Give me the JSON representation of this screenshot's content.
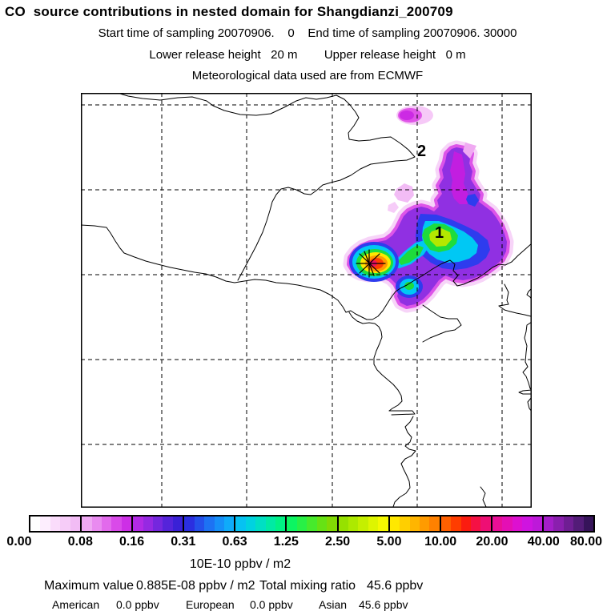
{
  "header": {
    "title": "CO  source contributions in nested domain for Shangdianzi_200709",
    "line2": "Start time of sampling 20070906.    0    End time of sampling 20070906. 30000",
    "line3": "Lower release height   20 m        Upper release height   0 m",
    "line4": "Meteorological data used are from ECMWF"
  },
  "map": {
    "label_1": "1",
    "label_2": "2",
    "marker": "star-at-receptor"
  },
  "colorbar": {
    "units_label": "10E-10 ppbv / m2",
    "tick_labels": [
      "0.00",
      "0.08",
      "0.16",
      "0.31",
      "0.63",
      "1.25",
      "2.50",
      "5.00",
      "10.00",
      "20.00",
      "40.00",
      "80.00"
    ],
    "segments": [
      [
        "#ffffff",
        "#fdeefe",
        "#fadcfb",
        "#f6ccf8",
        "#f2bcf5"
      ],
      [
        "#efa9f3",
        "#e98bf0",
        "#e26aec",
        "#d94ae9",
        "#cd2fe6"
      ],
      [
        "#b32ae5",
        "#9629e2",
        "#7527de",
        "#5524da",
        "#3a21d6"
      ],
      [
        "#2b2fe0",
        "#2450ea",
        "#1d72f3",
        "#168ff8",
        "#0fabfa"
      ],
      [
        "#06c2f2",
        "#00d2e0",
        "#00dfc4",
        "#00eaa4",
        "#00f284"
      ],
      [
        "#0cf562",
        "#28f046",
        "#47ea2c",
        "#66e214",
        "#82da04"
      ],
      [
        "#96e100",
        "#ade900",
        "#c5ef00",
        "#def500",
        "#f5f900"
      ],
      [
        "#ffe800",
        "#ffcf00",
        "#ffb500",
        "#ff9b00",
        "#ff8100"
      ],
      [
        "#ff6000",
        "#ff3d00",
        "#fb1c10",
        "#f51144",
        "#ee0f74"
      ],
      [
        "#e90f96",
        "#e40fb4",
        "#dd10d0",
        "#cf14e0",
        "#bd19d9"
      ],
      [
        "#a51ec9",
        "#8a1fae",
        "#6f1e93",
        "#531c78",
        "#36145a"
      ]
    ]
  },
  "stats": {
    "max_label": "Maximum value",
    "max_value": "0.885E-08 ppbv / m2",
    "tmr_label": "Total mixing ratio",
    "tmr_value": "45.6 ppbv",
    "regions": [
      {
        "name": "American",
        "value": "0.0 ppbv"
      },
      {
        "name": "European",
        "value": "0.0 ppbv"
      },
      {
        "name": "Asian",
        "value": "45.6 ppbv"
      }
    ]
  },
  "chart_data": {
    "type": "heatmap",
    "title": "CO source contributions in nested domain for Shangdianzi_200709",
    "subtitle": [
      "Start time of sampling 20070906. 0",
      "End time of sampling 20070906. 30000",
      "Lower release height 20 m",
      "Upper release height 0 m",
      "Meteorological data used are from ECMWF"
    ],
    "colorbar_units": "10E-10 ppbv / m2",
    "colorbar_levels": [
      0.0,
      0.08,
      0.16,
      0.31,
      0.63,
      1.25,
      2.5,
      5.0,
      10.0,
      20.0,
      40.0,
      80.0
    ],
    "maximum_value": "0.885E-08 ppbv / m2",
    "total_mixing_ratio_ppbv": 45.6,
    "contributions_ppbv": {
      "American": 0.0,
      "European": 0.0,
      "Asian": 45.6
    },
    "met_data_source": "ECMWF",
    "map_point_labels": [
      "1",
      "2"
    ],
    "plume": "single plume with maximum at starred receptor, extending northeast with secondary purple arm and detached weak patch to the north",
    "grid": "dashed lat/lon graticule, 5 vertical and 5 horizontal lines"
  }
}
